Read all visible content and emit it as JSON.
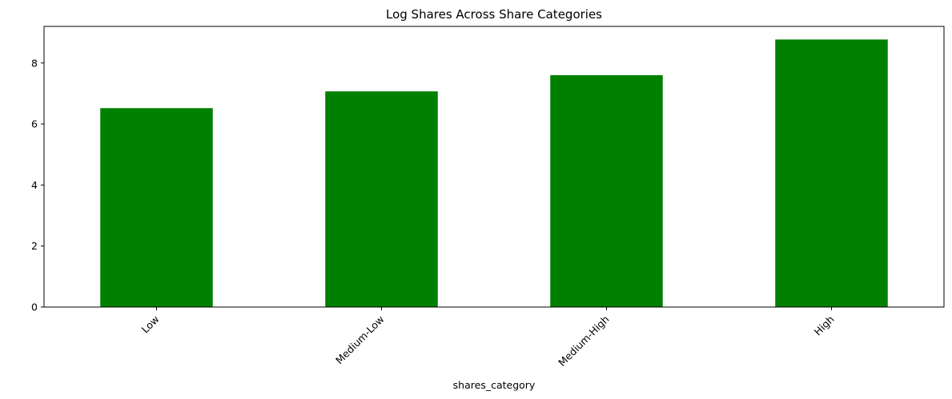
{
  "chart_data": {
    "type": "bar",
    "title": "Log Shares Across Share Categories",
    "xlabel": "shares_category",
    "ylabel": "",
    "categories": [
      "Low",
      "Medium-Low",
      "Medium-High",
      "High"
    ],
    "values": [
      6.52,
      7.07,
      7.6,
      8.77
    ],
    "ylim": [
      0,
      9.2
    ],
    "yticks": [
      0,
      2,
      4,
      6,
      8
    ],
    "bar_color": "#008000",
    "grid": false,
    "legend": "none"
  }
}
